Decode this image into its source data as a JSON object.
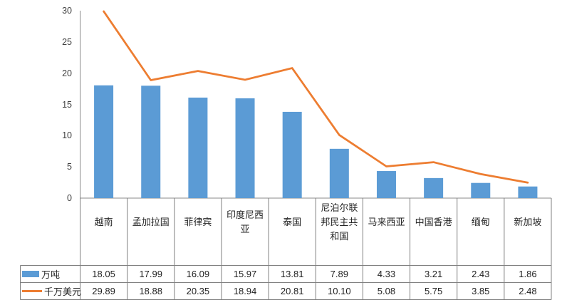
{
  "chart_data": {
    "type": "bar",
    "subtype": "combo-bar-line",
    "title": "",
    "categories": [
      "越南",
      "孟加拉国",
      "菲律宾",
      "印度尼西亚",
      "泰国",
      "尼泊尔联邦民主共和国",
      "马来西亚",
      "中国香港",
      "缅甸",
      "新加坡"
    ],
    "series": [
      {
        "name": "万吨",
        "type": "bar",
        "color": "#5B9BD5",
        "values": [
          18.05,
          17.99,
          16.09,
          15.97,
          13.81,
          7.89,
          4.33,
          3.21,
          2.43,
          1.86
        ]
      },
      {
        "name": "千万美元",
        "type": "line",
        "color": "#ED7D31",
        "values": [
          29.89,
          18.88,
          20.35,
          18.94,
          20.81,
          10.1,
          5.08,
          5.75,
          3.85,
          2.48
        ]
      }
    ],
    "y_axis": {
      "min": 0,
      "max": 30,
      "step": 5,
      "tick_labels": [
        "30",
        "25",
        "20",
        "15",
        "10",
        "5",
        "0"
      ]
    },
    "x_axis": {
      "label": ""
    },
    "grid": false,
    "legend_position": "data-table-left",
    "data_table": {
      "shown": true,
      "rows": [
        {
          "label": "万吨",
          "values": [
            "18.05",
            "17.99",
            "16.09",
            "15.97",
            "13.81",
            "7.89",
            "4.33",
            "3.21",
            "2.43",
            "1.86"
          ]
        },
        {
          "label": "千万美元",
          "values": [
            "29.89",
            "18.88",
            "20.35",
            "18.94",
            "20.81",
            "10.10",
            "5.08",
            "5.75",
            "3.85",
            "2.48"
          ]
        }
      ]
    },
    "colors": {
      "bar": "#5B9BD5",
      "line": "#ED7D31",
      "axis": "#8a8a8a",
      "table_border": "#808080",
      "tick_text": "#404040",
      "label_text": "#262626"
    }
  }
}
